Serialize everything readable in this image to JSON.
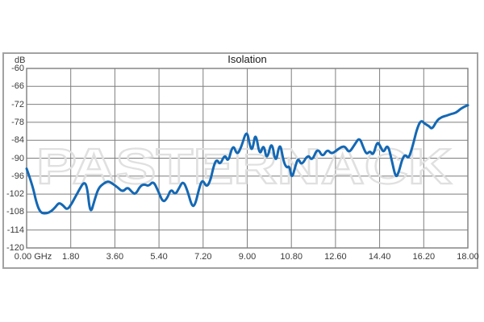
{
  "window": {
    "background": "#ffffff",
    "frame_border_color": "#a2a2a2"
  },
  "chart_data": {
    "type": "line",
    "title": "Isolation",
    "ylabel": "dB",
    "xlabel": "",
    "x_unit": "GHz",
    "watermark": "PASTERNACK",
    "grid": true,
    "legend": "none",
    "xlim": [
      0,
      18
    ],
    "ylim": [
      -120,
      -60
    ],
    "x_tick_labels": [
      "0.00 GHz",
      "1.80",
      "3.60",
      "5.40",
      "7.20",
      "9.00",
      "10.80",
      "12.60",
      "14.40",
      "16.20",
      "18.00"
    ],
    "x_tick_values": [
      0,
      1.8,
      3.6,
      5.4,
      7.2,
      9.0,
      10.8,
      12.6,
      14.4,
      16.2,
      18.0
    ],
    "y_tick_labels": [
      "-60",
      "-66",
      "-72",
      "-78",
      "-84",
      "-90",
      "-96",
      "-102",
      "-108",
      "-114",
      "-120"
    ],
    "y_tick_values": [
      -60,
      -66,
      -72,
      -78,
      -84,
      -90,
      -96,
      -102,
      -108,
      -114,
      -120
    ],
    "line_color": "#1468b4",
    "grid_color": "#7e7e7e",
    "watermark_color": "#e0e0e0",
    "series": [
      {
        "name": "Isolation",
        "points": [
          [
            0.0,
            -93.5
          ],
          [
            0.24,
            -99.0
          ],
          [
            0.4,
            -105.0
          ],
          [
            0.57,
            -108.3
          ],
          [
            0.8,
            -108.5
          ],
          [
            1.0,
            -107.8
          ],
          [
            1.16,
            -106.5
          ],
          [
            1.32,
            -104.8
          ],
          [
            1.49,
            -105.8
          ],
          [
            1.65,
            -107.3
          ],
          [
            1.82,
            -105.5
          ],
          [
            1.98,
            -103.0
          ],
          [
            2.15,
            -100.5
          ],
          [
            2.34,
            -97.9
          ],
          [
            2.47,
            -99.5
          ],
          [
            2.6,
            -109.0
          ],
          [
            2.77,
            -104.0
          ],
          [
            2.93,
            -100.0
          ],
          [
            3.13,
            -98.5
          ],
          [
            3.33,
            -97.6
          ],
          [
            3.52,
            -98.6
          ],
          [
            3.72,
            -99.8
          ],
          [
            3.92,
            -101.3
          ],
          [
            4.12,
            -99.6
          ],
          [
            4.28,
            -101.2
          ],
          [
            4.44,
            -102.2
          ],
          [
            4.64,
            -99.2
          ],
          [
            4.81,
            -98.7
          ],
          [
            4.97,
            -99.4
          ],
          [
            5.17,
            -97.6
          ],
          [
            5.37,
            -101.0
          ],
          [
            5.56,
            -104.8
          ],
          [
            5.73,
            -103.5
          ],
          [
            5.89,
            -100.2
          ],
          [
            6.06,
            -102.3
          ],
          [
            6.22,
            -100.0
          ],
          [
            6.38,
            -97.6
          ],
          [
            6.55,
            -100.5
          ],
          [
            6.75,
            -106.3
          ],
          [
            6.88,
            -105.5
          ],
          [
            7.04,
            -100.0
          ],
          [
            7.17,
            -97.0
          ],
          [
            7.34,
            -99.8
          ],
          [
            7.5,
            -97.5
          ],
          [
            7.63,
            -92.5
          ],
          [
            7.76,
            -90.3
          ],
          [
            7.89,
            -92.3
          ],
          [
            8.09,
            -88.6
          ],
          [
            8.22,
            -91.5
          ],
          [
            8.42,
            -85.2
          ],
          [
            8.58,
            -89.0
          ],
          [
            8.75,
            -86.5
          ],
          [
            8.98,
            -80.3
          ],
          [
            9.11,
            -86.0
          ],
          [
            9.21,
            -87.5
          ],
          [
            9.34,
            -81.0
          ],
          [
            9.51,
            -89.5
          ],
          [
            9.67,
            -85.0
          ],
          [
            9.8,
            -91.0
          ],
          [
            10.0,
            -83.8
          ],
          [
            10.16,
            -92.3
          ],
          [
            10.33,
            -84.2
          ],
          [
            10.49,
            -91.5
          ],
          [
            10.62,
            -93.3
          ],
          [
            10.72,
            -92.5
          ],
          [
            10.82,
            -97.0
          ],
          [
            10.95,
            -93.0
          ],
          [
            11.08,
            -89.8
          ],
          [
            11.21,
            -92.5
          ],
          [
            11.48,
            -88.7
          ],
          [
            11.64,
            -91.0
          ],
          [
            11.87,
            -86.5
          ],
          [
            12.07,
            -89.7
          ],
          [
            12.27,
            -87.0
          ],
          [
            12.43,
            -88.6
          ],
          [
            12.63,
            -87.5
          ],
          [
            12.82,
            -86.3
          ],
          [
            12.99,
            -86.0
          ],
          [
            13.15,
            -88.3
          ],
          [
            13.38,
            -85.5
          ],
          [
            13.58,
            -83.0
          ],
          [
            13.74,
            -86.5
          ],
          [
            13.87,
            -88.8
          ],
          [
            14.01,
            -87.5
          ],
          [
            14.14,
            -89.2
          ],
          [
            14.3,
            -84.3
          ],
          [
            14.43,
            -86.0
          ],
          [
            14.56,
            -88.3
          ],
          [
            14.73,
            -85.2
          ],
          [
            14.89,
            -90.5
          ],
          [
            15.06,
            -96.8
          ],
          [
            15.19,
            -94.5
          ],
          [
            15.32,
            -90.3
          ],
          [
            15.45,
            -88.7
          ],
          [
            15.58,
            -90.3
          ],
          [
            15.75,
            -86.0
          ],
          [
            15.91,
            -80.5
          ],
          [
            16.08,
            -77.2
          ],
          [
            16.24,
            -78.5
          ],
          [
            16.41,
            -79.2
          ],
          [
            16.54,
            -80.4
          ],
          [
            16.73,
            -77.5
          ],
          [
            16.93,
            -76.2
          ],
          [
            17.13,
            -75.8
          ],
          [
            17.32,
            -75.2
          ],
          [
            17.52,
            -74.8
          ],
          [
            17.69,
            -73.6
          ],
          [
            17.85,
            -72.8
          ],
          [
            18.0,
            -72.3
          ]
        ]
      }
    ]
  }
}
